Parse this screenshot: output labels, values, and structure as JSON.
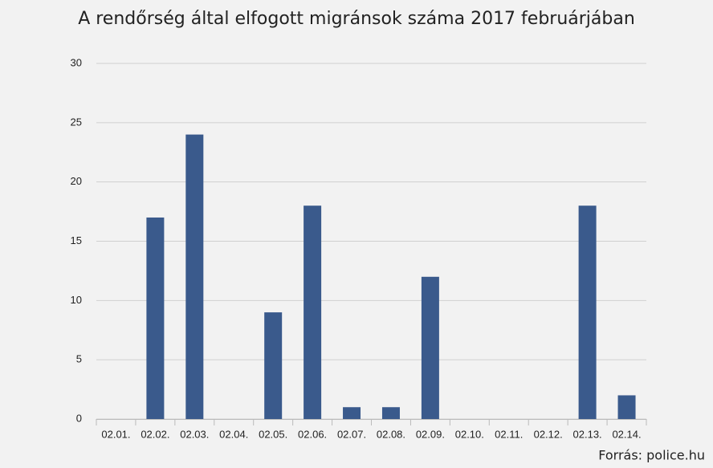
{
  "chart_data": {
    "type": "bar",
    "title": "A rendőrség által elfogott migránsok száma 2017 februárjában",
    "categories": [
      "02.01.",
      "02.02.",
      "02.03.",
      "02.04.",
      "02.05.",
      "02.06.",
      "02.07.",
      "02.08.",
      "02.09.",
      "02.10.",
      "02.11.",
      "02.12.",
      "02.13.",
      "02.14."
    ],
    "values": [
      0,
      17,
      24,
      0,
      9,
      18,
      1,
      1,
      12,
      0,
      0,
      0,
      18,
      2
    ],
    "color": "#3a5a8c",
    "ylim": [
      0,
      30
    ],
    "yticks": [
      0,
      5,
      10,
      15,
      20,
      25,
      30
    ],
    "grid": true,
    "source": "Forrás: police.hu"
  }
}
